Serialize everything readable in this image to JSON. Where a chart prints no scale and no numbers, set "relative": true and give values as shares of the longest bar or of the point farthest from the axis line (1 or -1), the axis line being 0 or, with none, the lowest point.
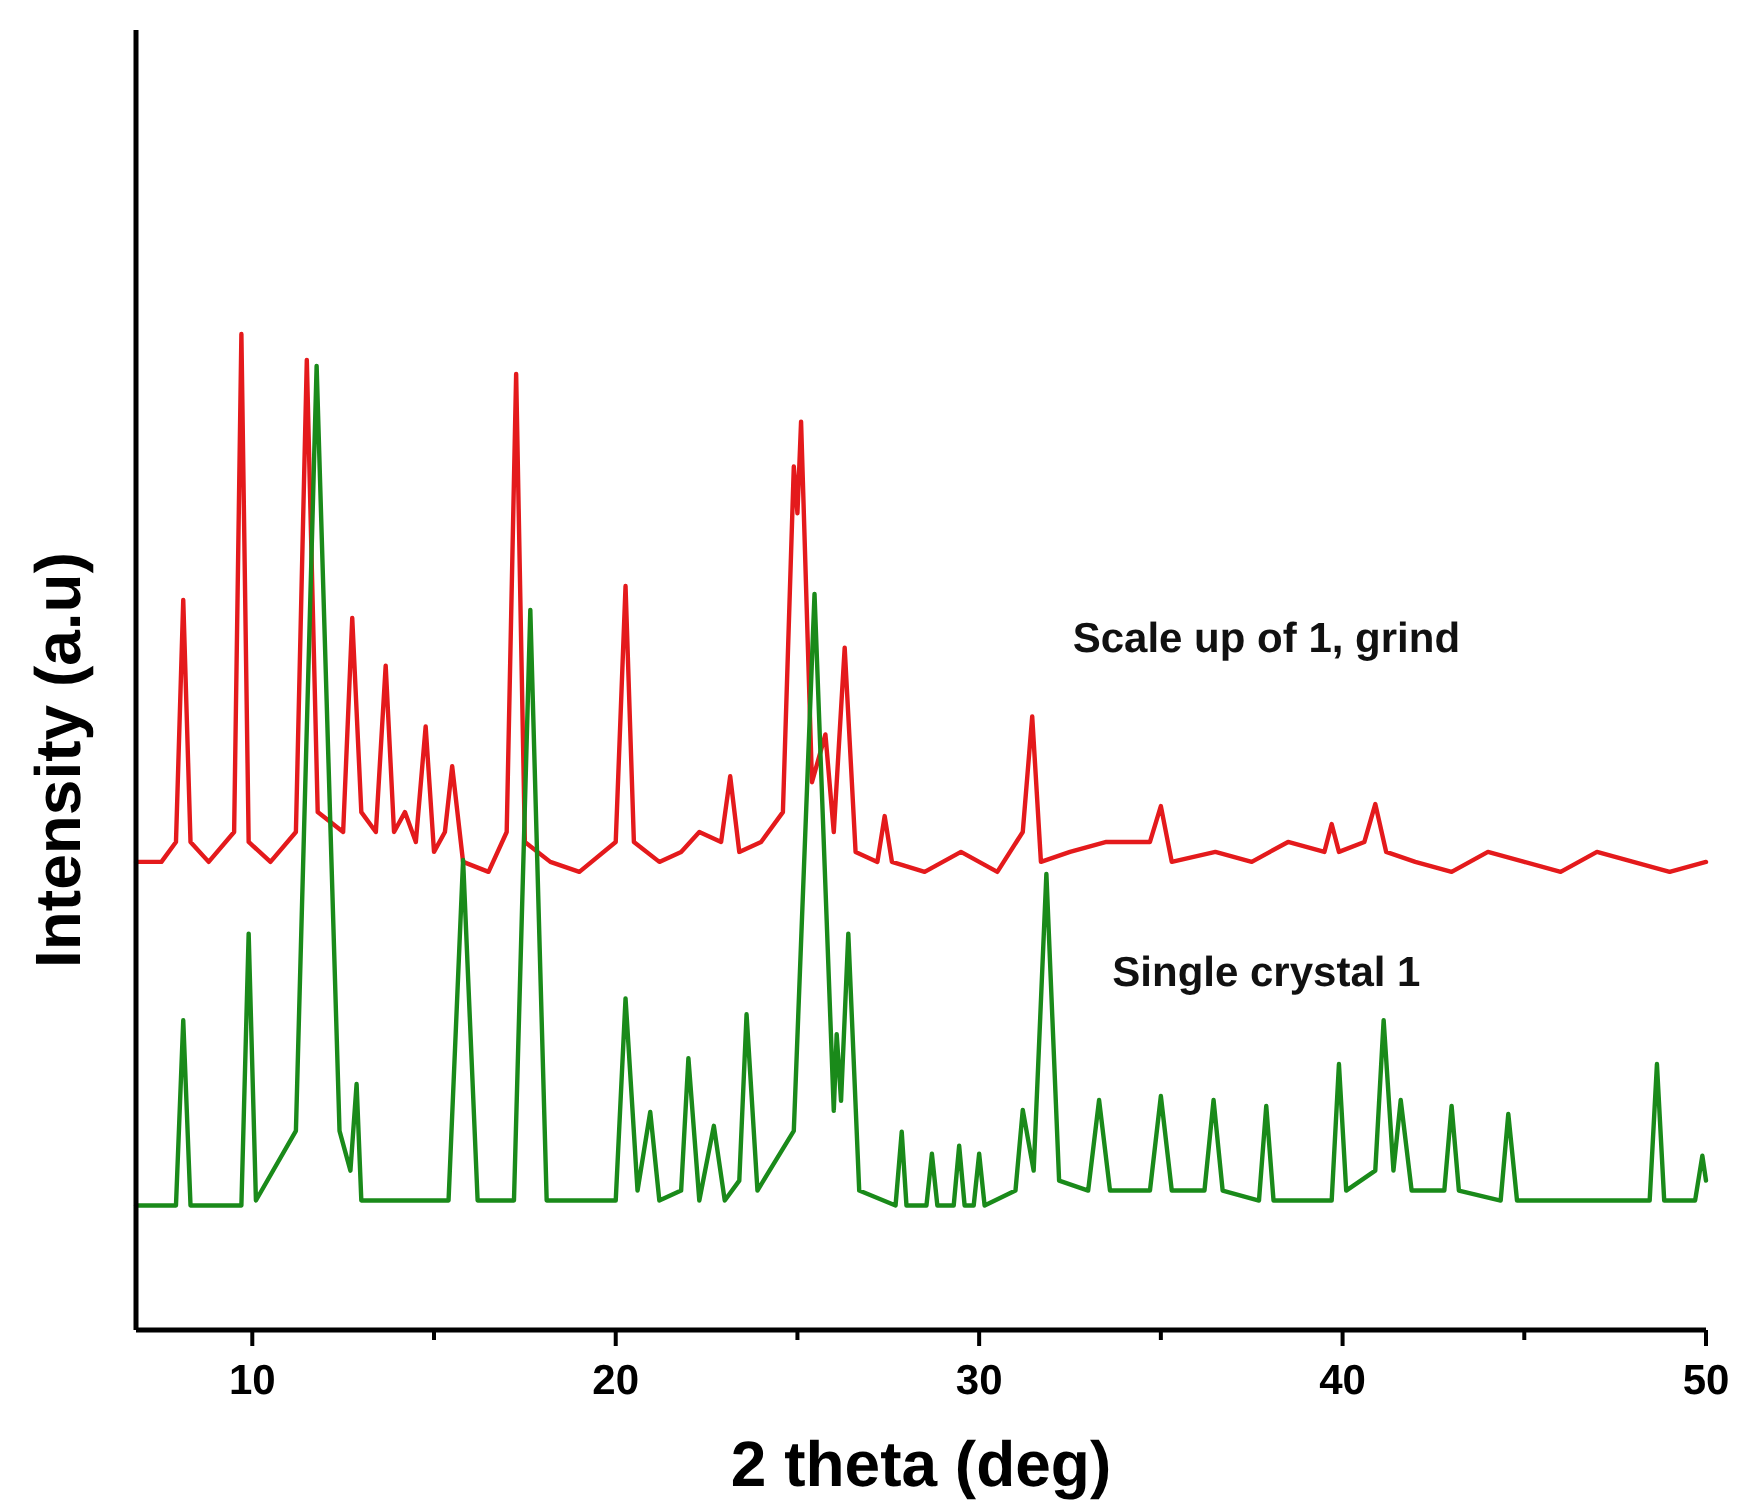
{
  "chart_data": {
    "type": "line",
    "relative": true,
    "xlabel": "2 theta (deg)",
    "ylabel": "Intensity (a.u)",
    "xlim": [
      6.8,
      50
    ],
    "xticks": [
      10,
      {
        "value": 15,
        "label": null
      },
      20,
      {
        "value": 25,
        "label": null
      },
      30,
      {
        "value": 35,
        "label": null
      },
      40,
      {
        "value": 45,
        "label": null
      },
      50
    ],
    "grid": false,
    "marker": "none",
    "line_style": "solid",
    "series": [
      {
        "name": "Scale up of 1, grind",
        "color": "#e41a1c",
        "x": [
          6.8,
          7.5,
          7.9,
          8.1,
          8.3,
          8.8,
          9.5,
          9.7,
          9.9,
          10.5,
          11.2,
          11.5,
          11.8,
          12.5,
          12.75,
          13.0,
          13.4,
          13.67,
          13.9,
          14.2,
          14.5,
          14.77,
          15.0,
          15.3,
          15.5,
          15.8,
          16.5,
          17.0,
          17.26,
          17.5,
          18.2,
          19.0,
          20.0,
          20.27,
          20.5,
          21.2,
          21.8,
          22.3,
          22.9,
          23.15,
          23.4,
          24.0,
          24.6,
          24.9,
          25.0,
          25.1,
          25.4,
          25.77,
          26.0,
          26.3,
          26.6,
          27.2,
          27.4,
          27.6,
          28.5,
          29.5,
          30.5,
          31.2,
          31.46,
          31.7,
          32.5,
          33.5,
          34.7,
          35.0,
          35.3,
          36.5,
          37.5,
          38.5,
          39.5,
          39.7,
          39.9,
          40.6,
          40.9,
          41.2,
          42.0,
          43.0,
          44.0,
          45.0,
          46.0,
          47.0,
          48.0,
          49.0,
          50.0
        ],
        "values": [
          0.47,
          0.47,
          0.49,
          0.733,
          0.49,
          0.47,
          0.5,
          1.0,
          0.49,
          0.47,
          0.5,
          0.974,
          0.52,
          0.5,
          0.715,
          0.52,
          0.5,
          0.667,
          0.5,
          0.52,
          0.49,
          0.606,
          0.48,
          0.5,
          0.566,
          0.47,
          0.46,
          0.5,
          0.96,
          0.49,
          0.47,
          0.46,
          0.49,
          0.747,
          0.49,
          0.47,
          0.48,
          0.5,
          0.49,
          0.556,
          0.48,
          0.49,
          0.52,
          0.867,
          0.82,
          0.912,
          0.55,
          0.598,
          0.5,
          0.685,
          0.48,
          0.47,
          0.516,
          0.47,
          0.46,
          0.48,
          0.46,
          0.5,
          0.616,
          0.47,
          0.48,
          0.49,
          0.49,
          0.526,
          0.47,
          0.48,
          0.47,
          0.49,
          0.48,
          0.508,
          0.48,
          0.49,
          0.528,
          0.48,
          0.47,
          0.46,
          0.48,
          0.47,
          0.46,
          0.48,
          0.47,
          0.46,
          0.47
        ]
      },
      {
        "name": "Single crystal 1",
        "color": "#1a8a1a",
        "x": [
          6.8,
          7.9,
          8.1,
          8.3,
          9.7,
          9.9,
          10.1,
          11.2,
          11.77,
          12.4,
          12.7,
          12.87,
          13.0,
          15.4,
          15.8,
          16.2,
          17.2,
          17.65,
          18.1,
          20.0,
          20.27,
          20.6,
          20.95,
          21.2,
          21.8,
          22.0,
          22.3,
          22.7,
          23.0,
          23.4,
          23.6,
          23.9,
          24.9,
          25.47,
          26.0,
          26.08,
          26.2,
          26.4,
          26.7,
          27.7,
          27.87,
          28.0,
          28.55,
          28.7,
          28.85,
          29.3,
          29.45,
          29.6,
          29.85,
          30.0,
          30.15,
          31.0,
          31.2,
          31.5,
          31.85,
          32.2,
          33.0,
          33.3,
          33.6,
          34.7,
          35.0,
          35.3,
          36.2,
          36.45,
          36.7,
          37.7,
          37.9,
          38.1,
          39.7,
          39.9,
          40.1,
          40.9,
          41.13,
          41.4,
          41.6,
          41.9,
          42.8,
          43.0,
          43.2,
          44.35,
          44.56,
          44.8,
          48.45,
          48.65,
          48.85,
          49.7,
          49.9,
          50.0
        ],
        "values": [
          0.125,
          0.125,
          0.311,
          0.125,
          0.125,
          0.398,
          0.13,
          0.2,
          0.968,
          0.2,
          0.16,
          0.247,
          0.13,
          0.13,
          0.472,
          0.13,
          0.13,
          0.723,
          0.13,
          0.13,
          0.333,
          0.14,
          0.219,
          0.13,
          0.14,
          0.273,
          0.13,
          0.205,
          0.13,
          0.15,
          0.317,
          0.14,
          0.2,
          0.739,
          0.22,
          0.297,
          0.23,
          0.398,
          0.14,
          0.125,
          0.199,
          0.125,
          0.125,
          0.177,
          0.125,
          0.125,
          0.185,
          0.125,
          0.125,
          0.177,
          0.125,
          0.14,
          0.221,
          0.16,
          0.458,
          0.15,
          0.14,
          0.231,
          0.14,
          0.14,
          0.235,
          0.14,
          0.14,
          0.231,
          0.14,
          0.13,
          0.225,
          0.13,
          0.13,
          0.267,
          0.14,
          0.16,
          0.311,
          0.16,
          0.231,
          0.14,
          0.14,
          0.225,
          0.14,
          0.13,
          0.217,
          0.13,
          0.13,
          0.267,
          0.13,
          0.13,
          0.175,
          0.15
        ]
      }
    ]
  }
}
